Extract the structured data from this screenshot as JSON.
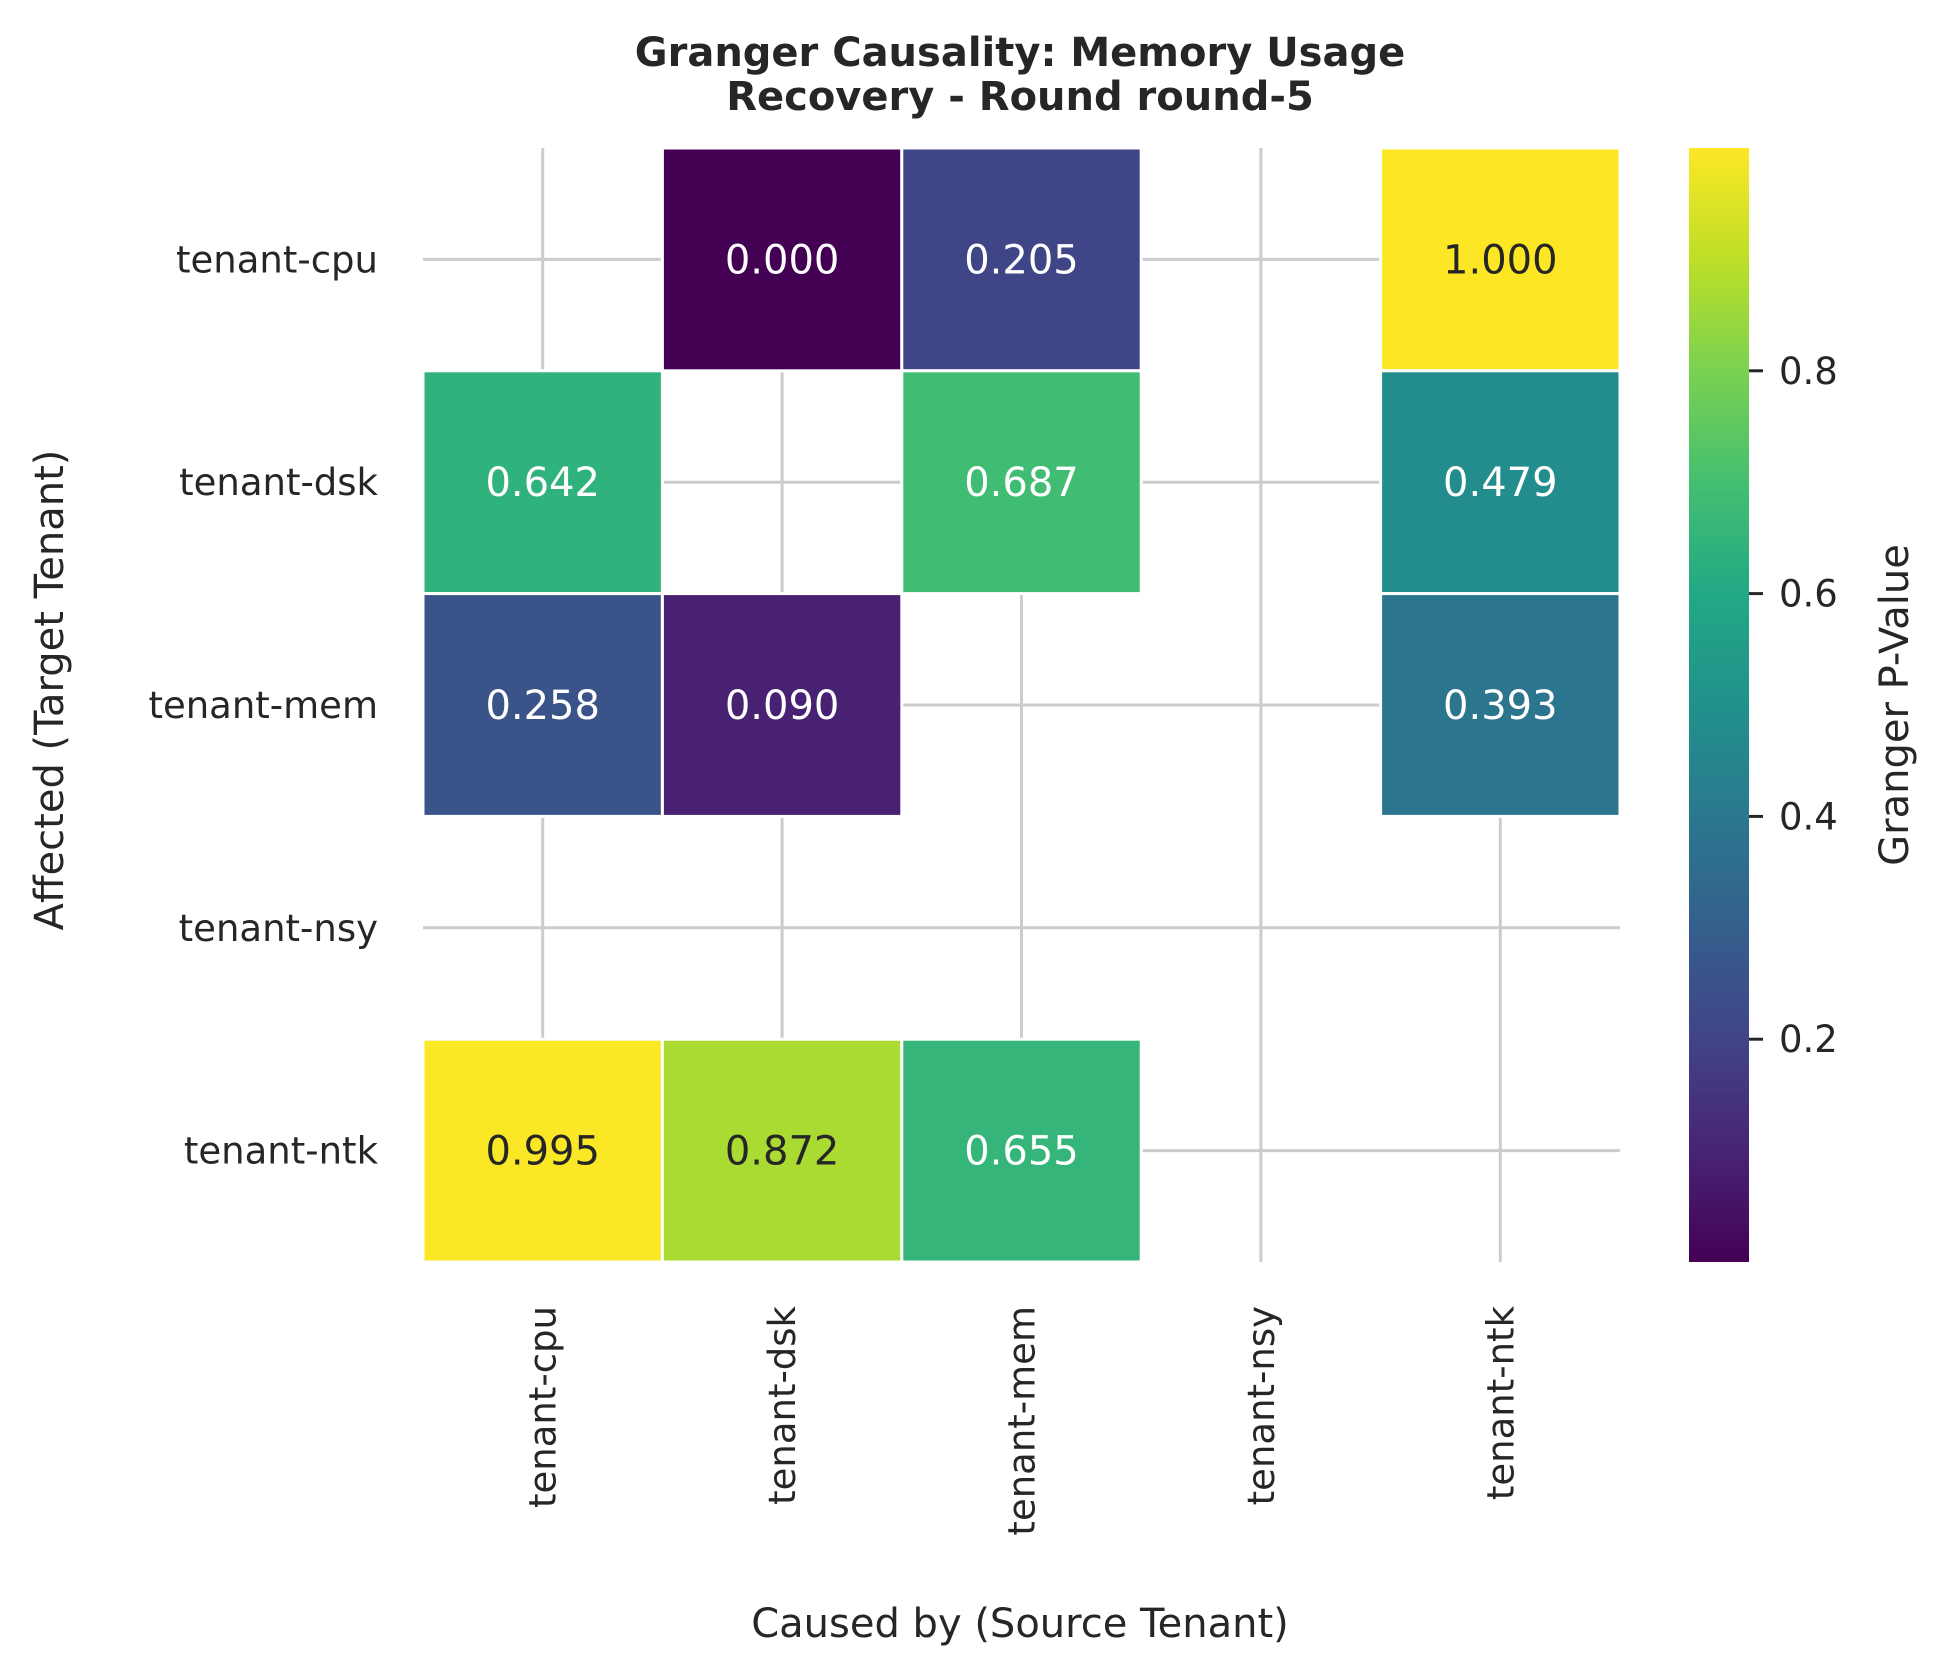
{
  "chart_data": {
    "type": "heatmap",
    "title": "Granger Causality: Memory Usage\nRecovery - Round round-5",
    "xlabel": "Caused by (Source Tenant)",
    "ylabel": "Affected (Target Tenant)",
    "x_categories": [
      "tenant-cpu",
      "tenant-dsk",
      "tenant-mem",
      "tenant-nsy",
      "tenant-ntk"
    ],
    "y_categories": [
      "tenant-cpu",
      "tenant-dsk",
      "tenant-mem",
      "tenant-nsy",
      "tenant-ntk"
    ],
    "values": [
      [
        null,
        0.0,
        0.205,
        null,
        1.0
      ],
      [
        0.642,
        null,
        0.687,
        null,
        0.479
      ],
      [
        0.258,
        0.09,
        null,
        null,
        0.393
      ],
      [
        null,
        null,
        null,
        null,
        null
      ],
      [
        0.995,
        0.872,
        0.655,
        null,
        null
      ]
    ],
    "value_format_decimals": 3,
    "colormap": "viridis",
    "colorbar": {
      "label": "Granger P-Value",
      "range": [
        0.0,
        1.0
      ],
      "ticks": [
        0.2,
        0.4,
        0.6,
        0.8
      ]
    },
    "grid": true
  }
}
